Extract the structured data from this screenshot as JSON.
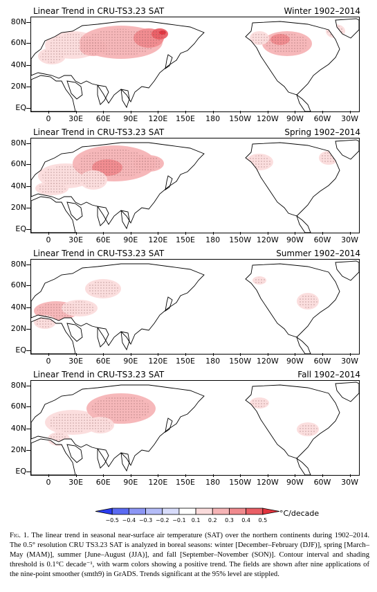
{
  "panels": [
    {
      "left_title": "Linear Trend in CRU-TS3.23 SAT",
      "right_title": "Winter 1902–2014",
      "season": "winter"
    },
    {
      "left_title": "Linear Trend in CRU-TS3.23 SAT",
      "right_title": "Spring 1902–2014",
      "season": "spring"
    },
    {
      "left_title": "Linear Trend in CRU-TS3.23 SAT",
      "right_title": "Summer 1902–2014",
      "season": "summer"
    },
    {
      "left_title": "Linear Trend in CRU-TS3.23 SAT",
      "right_title": "Fall 1902–2014",
      "season": "fall"
    }
  ],
  "lat_labels": [
    "80N",
    "60N",
    "40N",
    "20N",
    "EQ"
  ],
  "lon_labels": [
    "0",
    "30E",
    "60E",
    "90E",
    "120E",
    "150E",
    "180",
    "150W",
    "120W",
    "90W",
    "60W",
    "30W"
  ],
  "colorbar": {
    "tick_labels": [
      "−0.5",
      "−0.4",
      "−0.3",
      "−0.2",
      "−0.1",
      "0.1",
      "0.2",
      "0.3",
      "0.4",
      "0.5"
    ],
    "unit": "°C/decade",
    "colors": [
      "#2a3cf0",
      "#5a6af2",
      "#8c96f5",
      "#b4bcf8",
      "#d8dcfb",
      "#ffffff",
      "#fbdcdc",
      "#f6b4b6",
      "#f08a8e",
      "#ea5f66",
      "#e2343e"
    ]
  },
  "caption": {
    "fig": "Fig. 1.",
    "text": " The linear trend in seasonal near-surface air temperature (SAT) over the northern continents during 1902–2014. The 0.5° resolution CRU TS3.23 SAT is analyzed in boreal seasons: winter [December–February (DJF)], spring [March–May (MAM)], summer [June–August (JJA)], and fall [September–November (SON)]. Contour interval and shading threshold is 0.1°C decade⁻¹, with warm colors showing a positive trend. The fields are shown after nine applications of the nine-point smoother (smth9) in GrADS. Trends significant at the 95% level are stippled."
  }
}
